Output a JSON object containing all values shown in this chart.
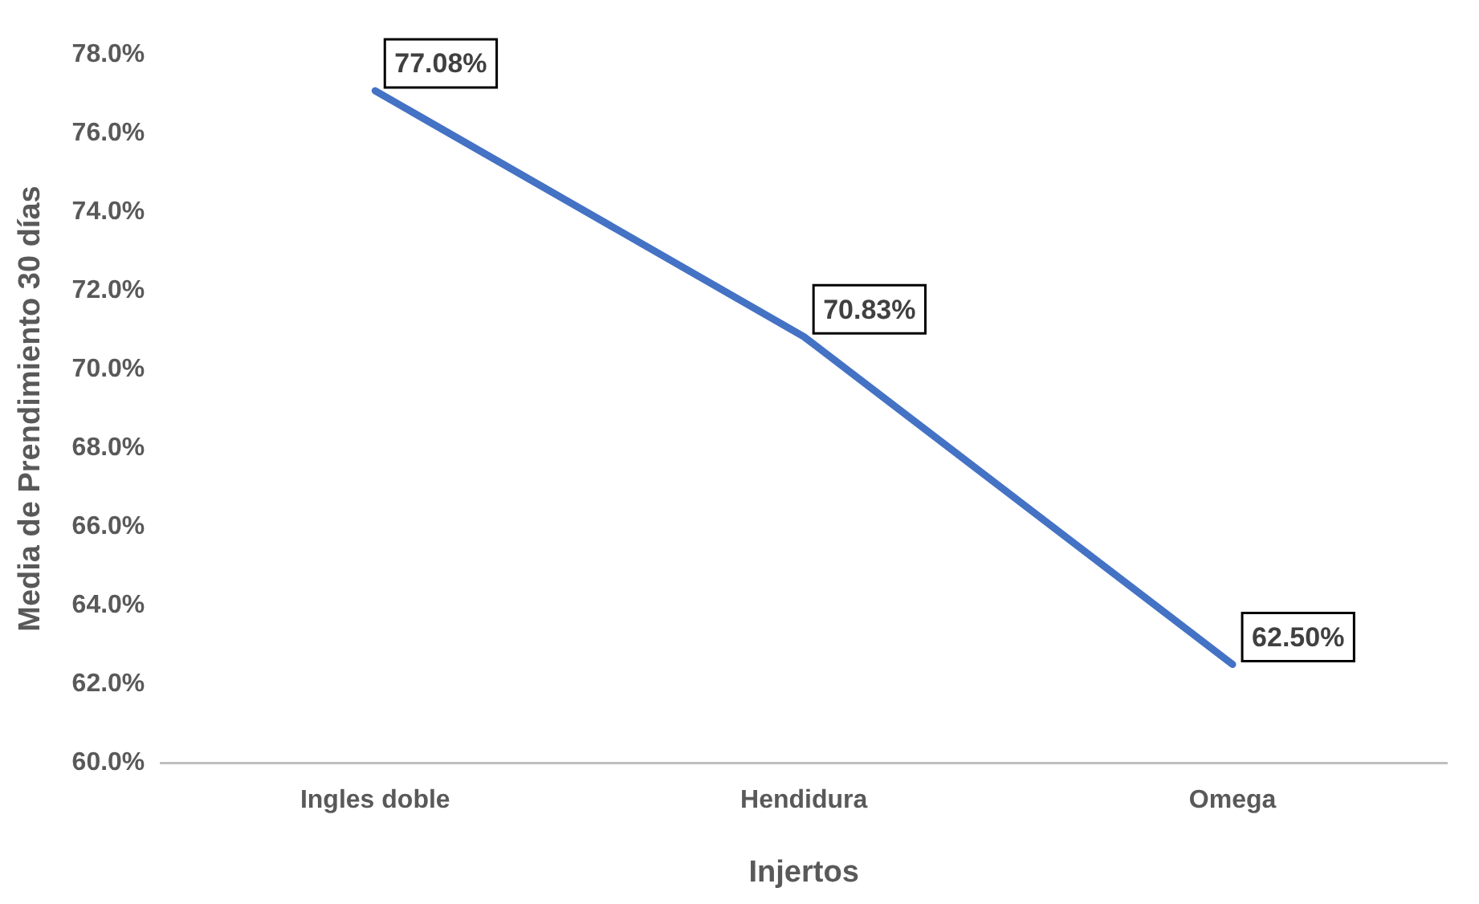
{
  "chart_data": {
    "type": "line",
    "xlabel": "Injertos",
    "ylabel": "Media de Prendimiento 30 días",
    "categories": [
      "Ingles doble",
      "Hendidura",
      "Omega"
    ],
    "series": [
      {
        "color": "#4472c4",
        "values": [
          77.08,
          70.83,
          62.5
        ],
        "value_labels": [
          "77.08%",
          "70.83%",
          "62.50%"
        ]
      }
    ],
    "ylim": [
      60,
      78
    ],
    "yticks": [
      {
        "value": 60,
        "label": "60.0%"
      },
      {
        "value": 62,
        "label": "62.0%"
      },
      {
        "value": 64,
        "label": "64.0%"
      },
      {
        "value": 66,
        "label": "66.0%"
      },
      {
        "value": 68,
        "label": "68.0%"
      },
      {
        "value": 70,
        "label": "70.0%"
      },
      {
        "value": 72,
        "label": "72.0%"
      },
      {
        "value": 74,
        "label": "74.0%"
      },
      {
        "value": 76,
        "label": "76.0%"
      },
      {
        "value": 78,
        "label": "78.0%"
      }
    ]
  }
}
